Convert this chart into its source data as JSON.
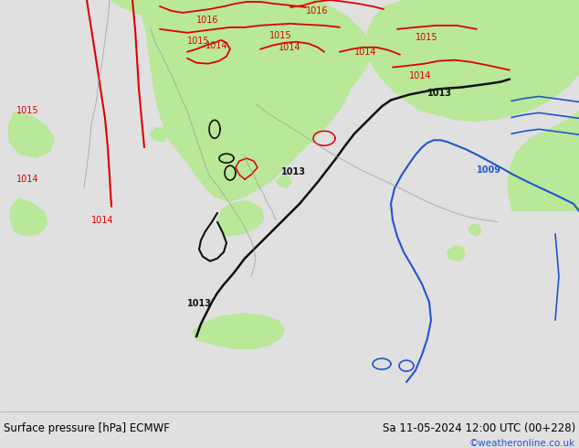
{
  "title_left": "Surface pressure [hPa] ECMWF",
  "title_right": "Sa 11-05-2024 12:00 UTC (00+228)",
  "credit": "©weatheronline.co.uk",
  "bg_color": "#e0e0e0",
  "map_bg": "#d0d0d0",
  "green_fill": "#b8e898",
  "bottom_bar_color": "#d8d8d8",
  "red_color": "#dd0000",
  "black_color": "#111111",
  "blue_color": "#2255cc",
  "gray_color": "#999999"
}
